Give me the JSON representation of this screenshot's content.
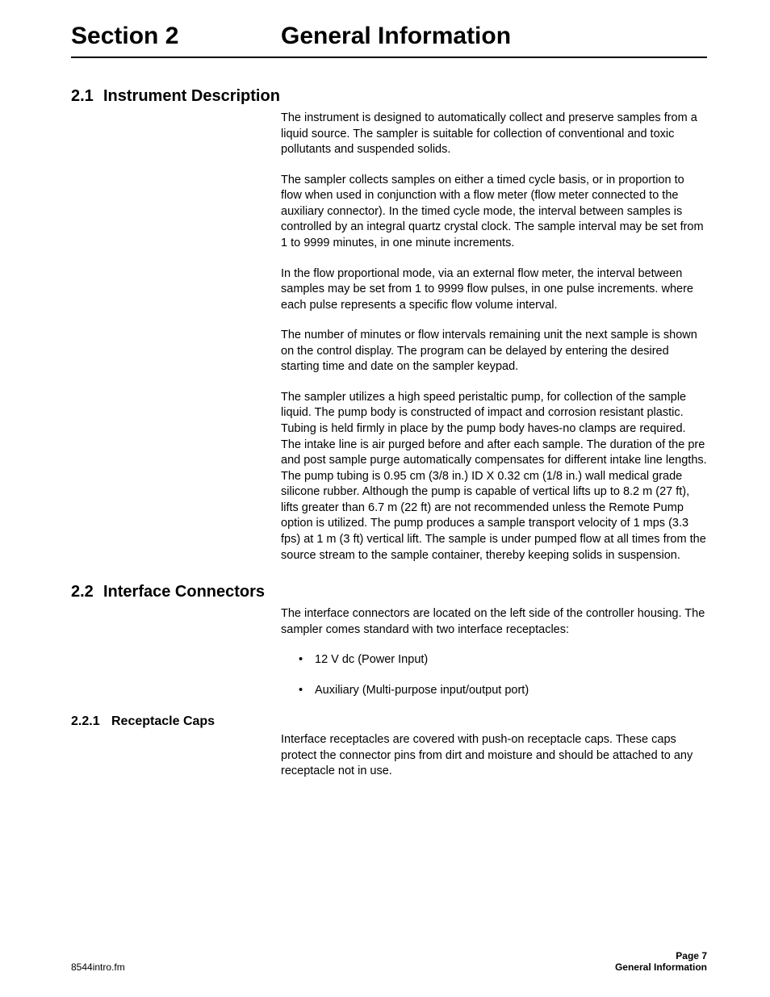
{
  "header": {
    "section_label": "Section 2",
    "section_title": "General Information"
  },
  "s21": {
    "num": "2.1",
    "title": "Instrument Description",
    "p1": "The instrument is designed to automatically collect and preserve samples from a liquid source. The sampler is suitable for collection of conventional and toxic pollutants and suspended solids.",
    "p2": "The sampler collects samples on either a timed cycle basis, or in proportion to flow when used in conjunction with a flow meter (flow meter connected to the auxiliary connector). In the timed cycle mode, the interval between samples is controlled by an integral quartz crystal clock. The sample interval may be set from 1 to 9999 minutes, in one minute increments.",
    "p3": "In the flow proportional mode, via an external flow meter, the interval between samples may be set from 1 to 9999 flow pulses, in one pulse increments. where each pulse represents a specific flow volume interval.",
    "p4": "The number of minutes or flow intervals remaining unit the next sample is shown on the control display. The program can be delayed by entering the desired starting time and date on the sampler keypad.",
    "p5": "The sampler utilizes a high speed peristaltic pump, for collection of the sample liquid. The pump body is constructed of impact and corrosion resistant plastic. Tubing is held firmly in place by the pump body haves-no clamps are required. The intake line is air purged before and after each sample. The duration of the pre and post sample purge automatically compensates for different intake line lengths. The pump tubing is 0.95 cm (3/8  in.) ID X 0.32 cm (1/8 in.) wall medical grade silicone rubber. Although the pump is capable of vertical lifts up to 8.2 m (27 ft), lifts greater than 6.7 m (22 ft) are not recommended unless the Remote Pump option is utilized. The pump produces a sample transport velocity of 1 mps (3.3 fps) at 1 m (3 ft) vertical lift. The sample is under pumped flow at all times from the source stream to the sample container, thereby keeping solids in suspension."
  },
  "s22": {
    "num": "2.2",
    "title": "Interface Connectors",
    "p1": "The interface connectors are located on the left side of the controller housing. The sampler comes standard with two interface receptacles:",
    "li1": "12 V dc (Power Input)",
    "li2": "Auxiliary (Multi-purpose input/output port)"
  },
  "s221": {
    "num": "2.2.1",
    "title": "Receptacle Caps",
    "p1": "Interface receptacles are covered with push-on receptacle caps. These caps protect the connector pins from dirt and moisture and should be attached to any receptacle not in use."
  },
  "footer": {
    "file": "8544intro.fm",
    "page": "Page 7",
    "title": "General Information"
  }
}
